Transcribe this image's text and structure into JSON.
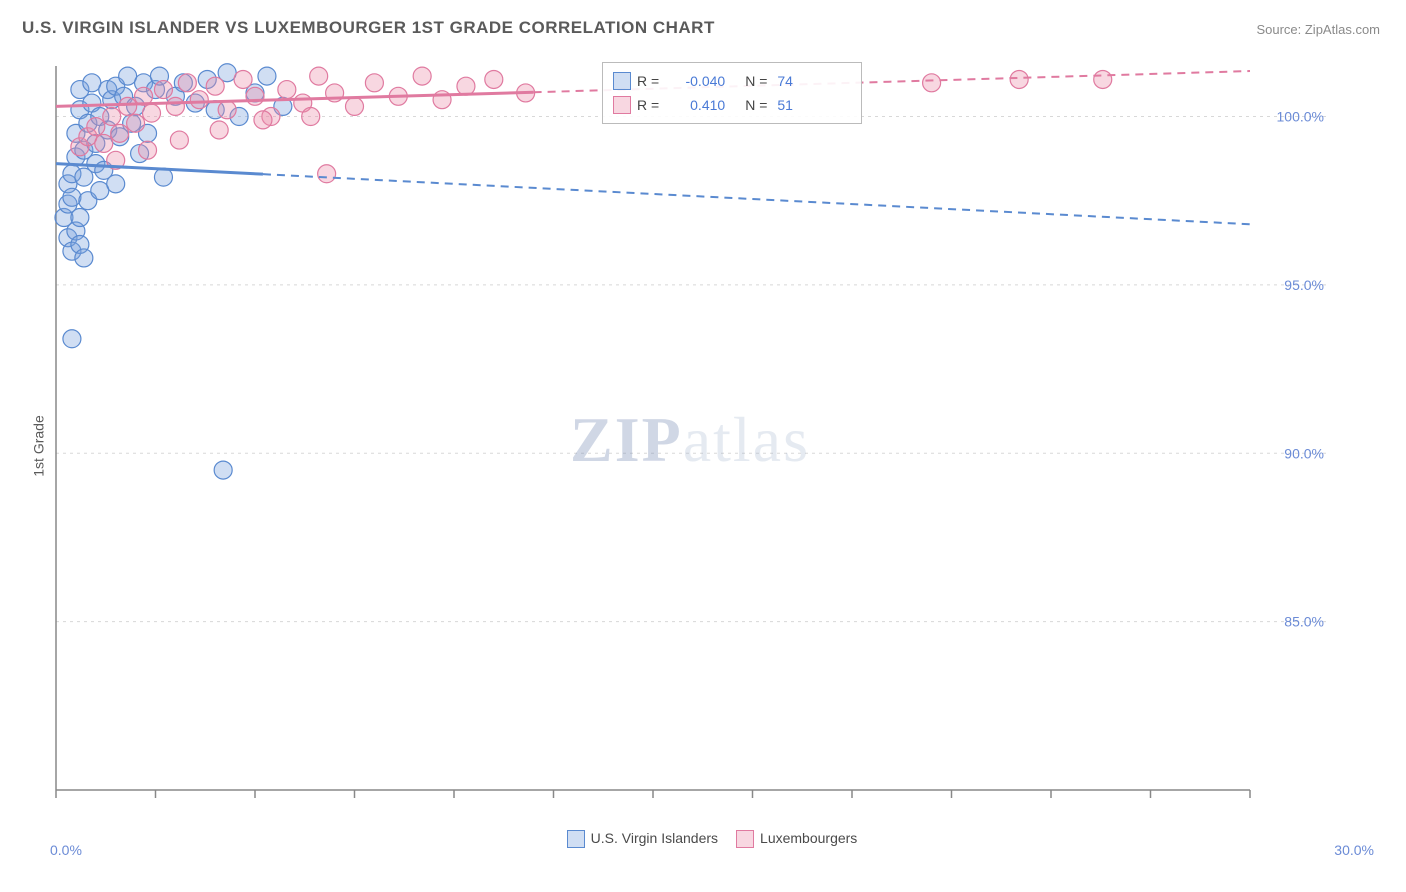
{
  "title": "U.S. VIRGIN ISLANDER VS LUXEMBOURGER 1ST GRADE CORRELATION CHART",
  "source": "Source: ZipAtlas.com",
  "ylabel": "1st Grade",
  "watermark_left": "ZIP",
  "watermark_right": "atlas",
  "chart": {
    "type": "scatter",
    "xlim": [
      0,
      30
    ],
    "ylim": [
      80,
      101.5
    ],
    "xtick_positions": [
      0,
      2.5,
      5,
      7.5,
      10,
      12.5,
      15,
      17.5,
      20,
      22.5,
      25,
      27.5,
      30
    ],
    "ytick_values": [
      85,
      90,
      95,
      100
    ],
    "ytick_labels": [
      "85.0%",
      "90.0%",
      "95.0%",
      "100.0%"
    ],
    "x_start_label": "0.0%",
    "x_end_label": "30.0%",
    "grid_color": "#d8d8d8",
    "axis_color": "#888888",
    "background_color": "#ffffff",
    "marker_radius": 9,
    "marker_stroke_width": 1.2,
    "tick_label_color": "#6b8bd6",
    "tick_label_fontsize": 14,
    "series": [
      {
        "name": "U.S. Virgin Islanders",
        "fill": "rgba(120,160,220,0.35)",
        "stroke": "#5a8ad0",
        "R": "-0.040",
        "N": "74",
        "trend": {
          "slope_per_x": -0.06,
          "intercept": 98.6,
          "solid_xmax": 5.2
        },
        "points": [
          [
            0.2,
            97.0
          ],
          [
            0.3,
            97.4
          ],
          [
            0.3,
            98.0
          ],
          [
            0.4,
            97.6
          ],
          [
            0.4,
            98.3
          ],
          [
            0.5,
            98.8
          ],
          [
            0.5,
            99.5
          ],
          [
            0.6,
            100.2
          ],
          [
            0.6,
            100.8
          ],
          [
            0.7,
            99.0
          ],
          [
            0.7,
            98.2
          ],
          [
            0.8,
            97.5
          ],
          [
            0.8,
            99.8
          ],
          [
            0.9,
            100.4
          ],
          [
            0.9,
            101.0
          ],
          [
            1.0,
            98.6
          ],
          [
            1.0,
            99.2
          ],
          [
            1.1,
            100.0
          ],
          [
            1.1,
            97.8
          ],
          [
            1.2,
            98.4
          ],
          [
            1.3,
            100.8
          ],
          [
            1.3,
            99.6
          ],
          [
            1.4,
            100.5
          ],
          [
            1.5,
            98.0
          ],
          [
            1.5,
            100.9
          ],
          [
            1.6,
            99.4
          ],
          [
            1.7,
            100.6
          ],
          [
            1.8,
            101.2
          ],
          [
            1.9,
            99.8
          ],
          [
            2.0,
            100.3
          ],
          [
            2.1,
            98.9
          ],
          [
            2.2,
            101.0
          ],
          [
            2.3,
            99.5
          ],
          [
            2.5,
            100.8
          ],
          [
            2.6,
            101.2
          ],
          [
            2.7,
            98.2
          ],
          [
            3.0,
            100.6
          ],
          [
            3.2,
            101.0
          ],
          [
            3.5,
            100.4
          ],
          [
            3.8,
            101.1
          ],
          [
            4.0,
            100.2
          ],
          [
            4.3,
            101.3
          ],
          [
            4.6,
            100.0
          ],
          [
            5.0,
            100.7
          ],
          [
            5.3,
            101.2
          ],
          [
            5.7,
            100.3
          ],
          [
            0.3,
            96.4
          ],
          [
            0.4,
            96.0
          ],
          [
            0.5,
            96.6
          ],
          [
            0.6,
            97.0
          ],
          [
            0.6,
            96.2
          ],
          [
            0.7,
            95.8
          ],
          [
            0.4,
            93.4
          ],
          [
            4.2,
            89.5
          ]
        ]
      },
      {
        "name": "Luxembourgers",
        "fill": "rgba(235,140,170,0.35)",
        "stroke": "#e07aa0",
        "R": "0.410",
        "N": "51",
        "trend": {
          "slope_per_x": 0.035,
          "intercept": 100.3,
          "solid_xmax": 12.0
        },
        "points": [
          [
            0.6,
            99.1
          ],
          [
            0.8,
            99.4
          ],
          [
            1.0,
            99.7
          ],
          [
            1.2,
            99.2
          ],
          [
            1.4,
            100.0
          ],
          [
            1.6,
            99.5
          ],
          [
            1.8,
            100.3
          ],
          [
            2.0,
            99.8
          ],
          [
            2.2,
            100.6
          ],
          [
            2.4,
            100.1
          ],
          [
            2.7,
            100.8
          ],
          [
            3.0,
            100.3
          ],
          [
            3.3,
            101.0
          ],
          [
            3.6,
            100.5
          ],
          [
            4.0,
            100.9
          ],
          [
            4.3,
            100.2
          ],
          [
            4.7,
            101.1
          ],
          [
            5.0,
            100.6
          ],
          [
            5.4,
            100.0
          ],
          [
            5.8,
            100.8
          ],
          [
            6.2,
            100.4
          ],
          [
            6.6,
            101.2
          ],
          [
            7.0,
            100.7
          ],
          [
            7.5,
            100.3
          ],
          [
            8.0,
            101.0
          ],
          [
            8.6,
            100.6
          ],
          [
            9.2,
            101.2
          ],
          [
            9.7,
            100.5
          ],
          [
            10.3,
            100.9
          ],
          [
            11.0,
            101.1
          ],
          [
            11.8,
            100.7
          ],
          [
            1.5,
            98.7
          ],
          [
            2.3,
            99.0
          ],
          [
            3.1,
            99.3
          ],
          [
            4.1,
            99.6
          ],
          [
            5.2,
            99.9
          ],
          [
            6.4,
            100.0
          ],
          [
            6.8,
            98.3
          ],
          [
            22.0,
            101.0
          ],
          [
            24.2,
            101.1
          ],
          [
            26.3,
            101.1
          ]
        ]
      }
    ]
  },
  "stats_legend": {
    "rows": [
      {
        "swatch_fill": "rgba(120,160,220,0.35)",
        "swatch_stroke": "#5a8ad0",
        "prefix_r": "R =",
        "r_val": "-0.040",
        "prefix_n": "N =",
        "n_val": "74"
      },
      {
        "swatch_fill": "rgba(235,140,170,0.35)",
        "swatch_stroke": "#e07aa0",
        "prefix_r": "R =",
        "r_val": "0.410",
        "prefix_n": "N =",
        "n_val": "51"
      }
    ]
  },
  "bottom_legend": {
    "items": [
      {
        "swatch_fill": "rgba(120,160,220,0.35)",
        "swatch_stroke": "#5a8ad0",
        "label": "U.S. Virgin Islanders"
      },
      {
        "swatch_fill": "rgba(235,140,170,0.35)",
        "swatch_stroke": "#e07aa0",
        "label": "Luxembourgers"
      }
    ]
  }
}
